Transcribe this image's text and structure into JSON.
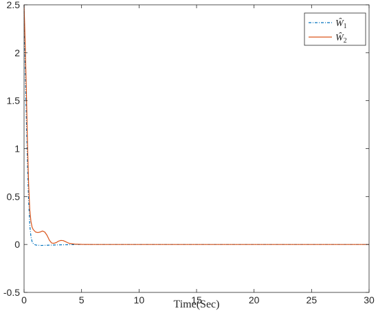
{
  "chart_data": {
    "type": "line",
    "title": "",
    "xlabel": "Time(Sec)",
    "ylabel": "",
    "xlim": [
      0,
      30
    ],
    "ylim": [
      -0.5,
      2.5
    ],
    "xticks": [
      0,
      5,
      10,
      15,
      20,
      25,
      30
    ],
    "yticks": [
      -0.5,
      0,
      0.5,
      1,
      1.5,
      2,
      2.5
    ],
    "xtick_labels": [
      "0",
      "5",
      "10",
      "15",
      "20",
      "25",
      "30"
    ],
    "ytick_labels": [
      "-0.5",
      "0",
      "0.5",
      "1",
      "1.5",
      "2",
      "2.5"
    ],
    "grid": false,
    "legend_position": "top-right",
    "series": [
      {
        "name": "Ŵ1",
        "name_base": "Ŵ",
        "name_sub": "1",
        "color": "#0072BD",
        "style": "dash-dot",
        "x": [
          0,
          0.1,
          0.2,
          0.3,
          0.4,
          0.5,
          0.6,
          0.7,
          0.8,
          0.9,
          1.0,
          1.2,
          1.5,
          2.0,
          3.0,
          4.0,
          5.0,
          6.0,
          30
        ],
        "y": [
          2.5,
          1.85,
          1.3,
          0.82,
          0.45,
          0.2,
          0.08,
          0.03,
          0.01,
          0.0,
          -0.005,
          -0.008,
          -0.01,
          -0.008,
          -0.004,
          -0.002,
          0.0,
          0.0,
          0.0
        ]
      },
      {
        "name": "Ŵ2",
        "name_base": "Ŵ",
        "name_sub": "2",
        "color": "#D95319",
        "style": "solid",
        "x": [
          0,
          0.1,
          0.2,
          0.3,
          0.4,
          0.5,
          0.6,
          0.7,
          0.8,
          1.0,
          1.2,
          1.4,
          1.6,
          1.8,
          2.0,
          2.2,
          2.4,
          2.6,
          2.8,
          3.0,
          3.2,
          3.4,
          3.6,
          3.8,
          4.0,
          4.4,
          5.0,
          6.0,
          30
        ],
        "y": [
          2.5,
          2.1,
          1.6,
          1.05,
          0.62,
          0.36,
          0.24,
          0.18,
          0.155,
          0.13,
          0.125,
          0.13,
          0.14,
          0.13,
          0.095,
          0.045,
          0.015,
          0.012,
          0.02,
          0.035,
          0.042,
          0.04,
          0.03,
          0.018,
          0.01,
          0.004,
          0.001,
          0.0,
          0.0
        ]
      }
    ]
  }
}
